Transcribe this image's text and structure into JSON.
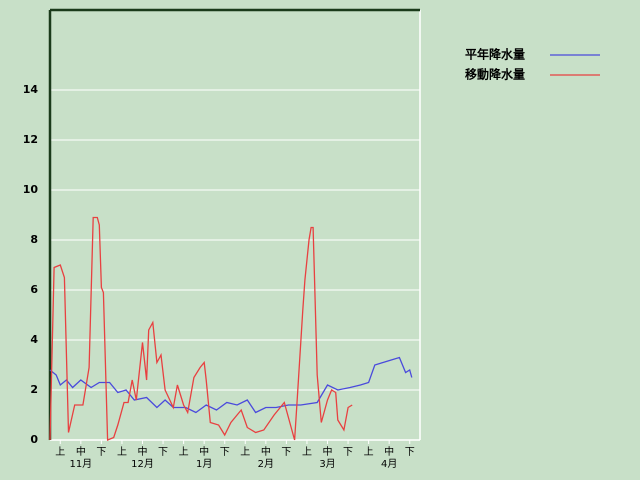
{
  "chart_data": {
    "type": "line",
    "series": [
      {
        "name": "平年降水量",
        "color": "#4a4adc",
        "x": [
          0,
          3,
          5,
          8,
          11,
          15,
          20,
          24,
          29,
          33,
          37,
          41,
          47,
          52,
          56,
          60,
          66,
          71,
          76,
          81,
          86,
          91,
          96,
          100,
          105,
          110,
          116,
          122,
          130,
          135,
          140,
          146,
          151,
          155,
          158,
          162,
          166,
          170,
          173,
          175,
          176
        ],
        "values": [
          2.8,
          2.6,
          2.2,
          2.4,
          2.1,
          2.4,
          2.1,
          2.3,
          2.3,
          1.9,
          2.0,
          1.6,
          1.7,
          1.3,
          1.6,
          1.3,
          1.3,
          1.1,
          1.4,
          1.2,
          1.5,
          1.4,
          1.6,
          1.1,
          1.3,
          1.3,
          1.4,
          1.4,
          1.5,
          2.2,
          2.0,
          2.1,
          2.2,
          2.3,
          3.0,
          3.1,
          3.2,
          3.3,
          2.7,
          2.8,
          2.5
        ]
      },
      {
        "name": "移動降水量",
        "color": "#e84040",
        "x": [
          0,
          2,
          5,
          7,
          9,
          12,
          16,
          19,
          21,
          23,
          24,
          25,
          26,
          28,
          31,
          33,
          36,
          38,
          40,
          42,
          45,
          47,
          48,
          50,
          52,
          54,
          56,
          60,
          62,
          65,
          67,
          70,
          73,
          75,
          76,
          78,
          82,
          85,
          88,
          93,
          96,
          100,
          104,
          109,
          114,
          119,
          120,
          123,
          124,
          126,
          127,
          128,
          130,
          132,
          135,
          137,
          139,
          140,
          143,
          145,
          147
        ],
        "values": [
          0,
          6.9,
          7.0,
          6.5,
          0.3,
          1.4,
          1.4,
          2.9,
          8.9,
          8.9,
          8.6,
          6.1,
          5.9,
          0,
          0.1,
          0.6,
          1.5,
          1.5,
          2.4,
          1.6,
          3.9,
          2.4,
          4.4,
          4.7,
          3.1,
          3.4,
          2.0,
          1.3,
          2.2,
          1.4,
          1.1,
          2.5,
          2.9,
          3.1,
          2.4,
          0.7,
          0.6,
          0.2,
          0.7,
          1.2,
          0.5,
          0.3,
          0.4,
          1.0,
          1.5,
          0,
          1.3,
          5.2,
          6.4,
          8.0,
          8.5,
          8.5,
          2.6,
          0.7,
          1.6,
          2.0,
          1.9,
          0.8,
          0.4,
          1.3,
          1.4
        ]
      }
    ],
    "xlim": [
      0,
      180
    ],
    "xticks": [
      {
        "value": 5,
        "label": "上"
      },
      {
        "value": 15,
        "label": "中"
      },
      {
        "value": 25,
        "label": "下"
      },
      {
        "value": 35,
        "label": "上"
      },
      {
        "value": 45,
        "label": "中"
      },
      {
        "value": 55,
        "label": "下"
      },
      {
        "value": 65,
        "label": "上"
      },
      {
        "value": 75,
        "label": "中"
      },
      {
        "value": 85,
        "label": "下"
      },
      {
        "value": 95,
        "label": "上"
      },
      {
        "value": 105,
        "label": "中"
      },
      {
        "value": 115,
        "label": "下"
      },
      {
        "value": 125,
        "label": "上"
      },
      {
        "value": 135,
        "label": "中"
      },
      {
        "value": 145,
        "label": "下"
      },
      {
        "value": 155,
        "label": "上"
      },
      {
        "value": 165,
        "label": "中"
      },
      {
        "value": 175,
        "label": "下"
      }
    ],
    "month_labels": [
      {
        "value": 15,
        "label": "11月"
      },
      {
        "value": 45,
        "label": "12月"
      },
      {
        "value": 75,
        "label": "1月"
      },
      {
        "value": 105,
        "label": "2月"
      },
      {
        "value": 135,
        "label": "3月"
      },
      {
        "value": 165,
        "label": "4月"
      }
    ],
    "ylim": [
      0,
      17.2
    ],
    "yticks": [
      0,
      2,
      4,
      6,
      8,
      10,
      12,
      14
    ],
    "grid": true
  }
}
